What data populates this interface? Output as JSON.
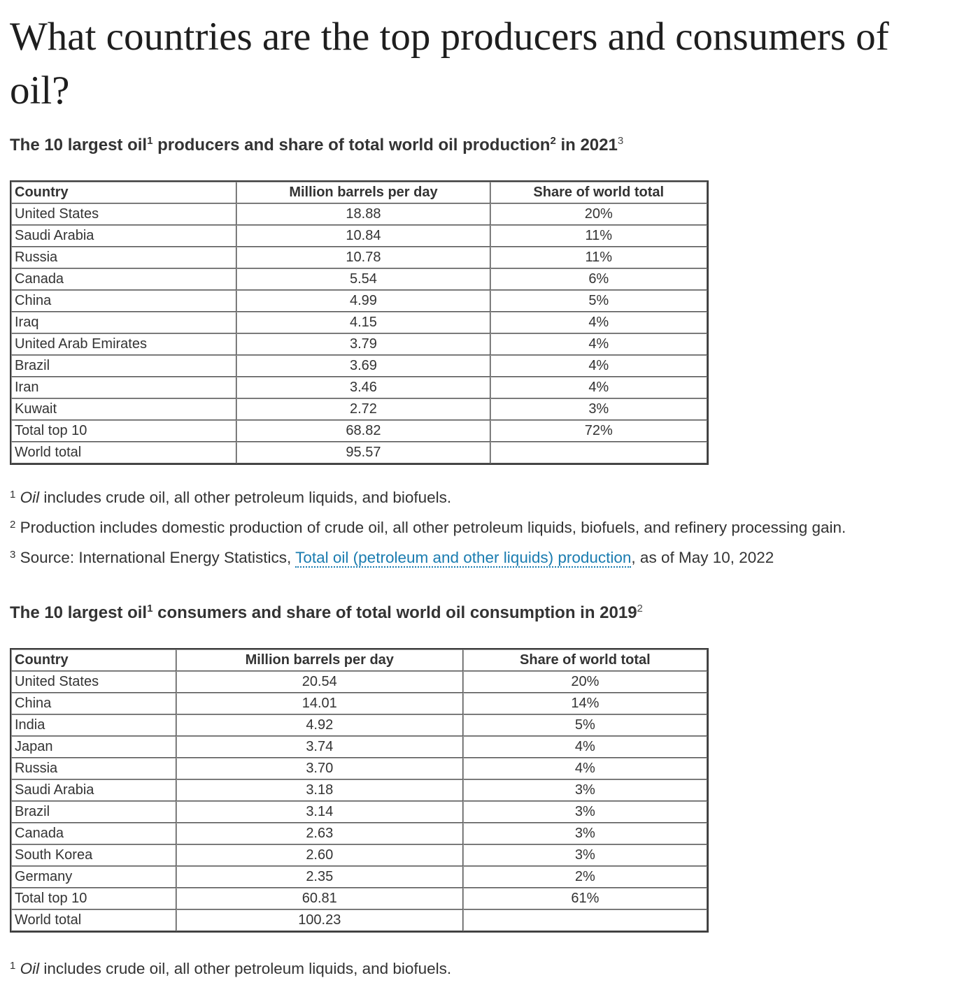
{
  "page": {
    "title": "What countries are the top producers and consumers of oil?"
  },
  "colors": {
    "link": "#1a7cb0",
    "heading_text": "#333333",
    "table_border": "#3c3c3c"
  },
  "producers": {
    "heading": {
      "pre": "The 10 largest oil",
      "sup1": "1",
      "mid": " producers and share of total world oil production",
      "sup2": "2",
      "tail": " in 2021",
      "sup3": "3"
    },
    "table": {
      "columns": [
        "Country",
        "Million barrels per day",
        "Share of world total"
      ],
      "rows": [
        [
          "United States",
          "18.88",
          "20%"
        ],
        [
          "Saudi Arabia",
          "10.84",
          "11%"
        ],
        [
          "Russia",
          "10.78",
          "11%"
        ],
        [
          "Canada",
          "5.54",
          "6%"
        ],
        [
          "China",
          "4.99",
          "5%"
        ],
        [
          "Iraq",
          "4.15",
          "4%"
        ],
        [
          "United Arab Emirates",
          "3.79",
          "4%"
        ],
        [
          "Brazil",
          "3.69",
          "4%"
        ],
        [
          "Iran",
          "3.46",
          "4%"
        ],
        [
          "Kuwait",
          "2.72",
          "3%"
        ],
        [
          "Total top 10",
          "68.82",
          "72%"
        ],
        [
          "World total",
          "95.57",
          ""
        ]
      ]
    },
    "footnote1": {
      "sup": "1",
      "italic": " Oil",
      "text": " includes crude oil, all other petroleum liquids, and biofuels."
    },
    "footnote2": {
      "sup": "2",
      "text": " Production includes domestic production of crude oil, all other petroleum liquids, biofuels, and refinery processing gain."
    },
    "footnote3": {
      "sup": "3",
      "pre": " Source: International Energy Statistics, ",
      "link": "Total oil (petroleum and other liquids) production",
      "post": ", as of May 10, 2022"
    }
  },
  "consumers": {
    "heading": {
      "pre": "The 10 largest oil",
      "sup1": "1",
      "mid": " consumers and share of total world oil consumption in 2019",
      "sup2": "2"
    },
    "table": {
      "columns": [
        "Country",
        "Million barrels per day",
        "Share of world total"
      ],
      "rows": [
        [
          "United States",
          "20.54",
          "20%"
        ],
        [
          "China",
          "14.01",
          "14%"
        ],
        [
          "India",
          "4.92",
          "5%"
        ],
        [
          "Japan",
          "3.74",
          "4%"
        ],
        [
          "Russia",
          "3.70",
          "4%"
        ],
        [
          "Saudi Arabia",
          "3.18",
          "3%"
        ],
        [
          "Brazil",
          "3.14",
          "3%"
        ],
        [
          "Canada",
          "2.63",
          "3%"
        ],
        [
          "South Korea",
          "2.60",
          "3%"
        ],
        [
          "Germany",
          "2.35",
          "2%"
        ],
        [
          "Total top 10",
          "60.81",
          "61%"
        ],
        [
          "World total",
          "100.23",
          ""
        ]
      ]
    },
    "footnote1": {
      "sup": "1",
      "italic": " Oil",
      "text": " includes crude oil, all other petroleum liquids, and biofuels."
    }
  }
}
